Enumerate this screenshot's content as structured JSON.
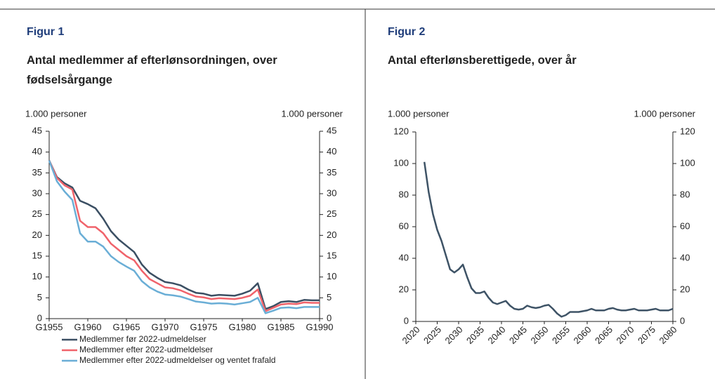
{
  "chart_data": [
    {
      "type": "line",
      "figure_label": "Figur 1",
      "title": "Antal medlemmer af efterlønsordningen, over fødselsårgange",
      "ylabel": "1.000 personer",
      "y2label": "1.000 personer",
      "x": [
        1955,
        1956,
        1957,
        1958,
        1959,
        1960,
        1961,
        1962,
        1963,
        1964,
        1965,
        1966,
        1967,
        1968,
        1969,
        1970,
        1971,
        1972,
        1973,
        1974,
        1975,
        1976,
        1977,
        1978,
        1979,
        1980,
        1981,
        1982,
        1983,
        1984,
        1985,
        1986,
        1987,
        1988,
        1989,
        1990
      ],
      "xlim": [
        1955,
        1990
      ],
      "xticks": [
        {
          "value": 1955,
          "label": "G1955"
        },
        {
          "value": 1960,
          "label": "G1960"
        },
        {
          "value": 1965,
          "label": "G1965"
        },
        {
          "value": 1970,
          "label": "G1970"
        },
        {
          "value": 1975,
          "label": "G1975"
        },
        {
          "value": 1980,
          "label": "G1980"
        },
        {
          "value": 1985,
          "label": "G1985"
        },
        {
          "value": 1990,
          "label": "G1990"
        }
      ],
      "ylim": [
        0,
        45
      ],
      "yticks": [
        0,
        5,
        10,
        15,
        20,
        25,
        30,
        35,
        40,
        45
      ],
      "y2lim": [
        0,
        45
      ],
      "y2ticks": [
        0,
        5,
        10,
        15,
        20,
        25,
        30,
        35,
        40,
        45
      ],
      "legend": "bottom-left",
      "series": [
        {
          "name": "Medlemmer før 2022-udmeldelser",
          "color": "#3b4f63",
          "values": [
            38,
            34,
            32.5,
            31.5,
            28.3,
            27.5,
            26.5,
            24,
            21,
            19,
            17.5,
            16,
            13,
            11,
            9.8,
            8.8,
            8.5,
            8,
            7,
            6.2,
            6,
            5.5,
            5.7,
            5.6,
            5.5,
            6,
            6.7,
            8.5,
            2.3,
            3,
            4,
            4.2,
            4,
            4.5,
            4.4,
            4.4
          ]
        },
        {
          "name": "Medlemmer efter 2022-udmeldelser",
          "color": "#f0636b",
          "values": [
            38,
            33.8,
            32,
            31,
            23.5,
            22,
            22,
            20.5,
            18,
            16.5,
            15,
            14,
            11.5,
            9.5,
            8.5,
            7.5,
            7.3,
            6.8,
            6,
            5.3,
            5.1,
            4.7,
            4.9,
            4.8,
            4.7,
            5,
            5.5,
            7,
            1.8,
            2.6,
            3.4,
            3.6,
            3.5,
            3.9,
            3.8,
            3.8
          ]
        },
        {
          "name": "Medlemmer efter 2022-udmeldelser og ventet frafald",
          "color": "#6aaed6",
          "values": [
            38,
            33,
            30.5,
            28.5,
            20.5,
            18.5,
            18.5,
            17.3,
            15,
            13.6,
            12.5,
            11.5,
            9,
            7.5,
            6.5,
            5.8,
            5.6,
            5.3,
            4.7,
            4.1,
            3.9,
            3.6,
            3.7,
            3.6,
            3.4,
            3.7,
            4,
            5,
            1.3,
            1.9,
            2.6,
            2.7,
            2.5,
            2.8,
            2.8,
            2.8
          ]
        }
      ]
    },
    {
      "type": "line",
      "figure_label": "Figur 2",
      "title": "Antal efterlønsberettigede, over år",
      "ylabel": "1.000 personer",
      "y2label": "1.000 personer",
      "x": [
        2022,
        2023,
        2024,
        2025,
        2026,
        2027,
        2028,
        2029,
        2030,
        2031,
        2032,
        2033,
        2034,
        2035,
        2036,
        2037,
        2038,
        2039,
        2040,
        2041,
        2042,
        2043,
        2044,
        2045,
        2046,
        2047,
        2048,
        2049,
        2050,
        2051,
        2052,
        2053,
        2054,
        2055,
        2056,
        2057,
        2058,
        2059,
        2060,
        2061,
        2062,
        2063,
        2064,
        2065,
        2066,
        2067,
        2068,
        2069,
        2070,
        2071,
        2072,
        2073,
        2074,
        2075,
        2076,
        2077,
        2078,
        2079,
        2080
      ],
      "xlim": [
        2020,
        2080
      ],
      "xticks": [
        2020,
        2025,
        2030,
        2035,
        2040,
        2045,
        2050,
        2055,
        2060,
        2065,
        2070,
        2075,
        2080
      ],
      "ylim": [
        0,
        120
      ],
      "yticks": [
        0,
        20,
        40,
        60,
        80,
        100,
        120
      ],
      "y2lim": [
        0,
        120
      ],
      "y2ticks": [
        0,
        20,
        40,
        60,
        80,
        100,
        120
      ],
      "series": [
        {
          "color": "#3e5366",
          "values": [
            101,
            82,
            68,
            58,
            51,
            42,
            33,
            31,
            33,
            36,
            28,
            21,
            18,
            18,
            19,
            15,
            12,
            11,
            12,
            13,
            10,
            8,
            7.5,
            8,
            10,
            9,
            8.5,
            9,
            10,
            10.5,
            8,
            5,
            3,
            4,
            6,
            6,
            6,
            6.5,
            7,
            8,
            7,
            7,
            7,
            8,
            8.5,
            7.5,
            7,
            7,
            7.5,
            8,
            7,
            7,
            7,
            7.5,
            8,
            7,
            7,
            7,
            8
          ]
        }
      ]
    }
  ]
}
